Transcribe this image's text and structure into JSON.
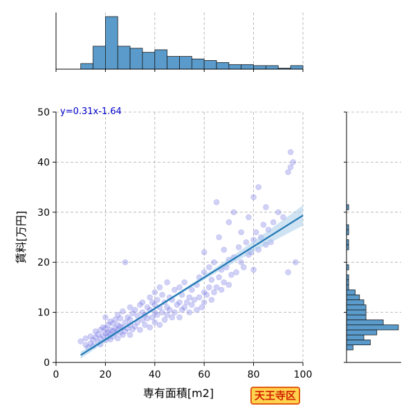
{
  "chart_data": {
    "type": "scatter",
    "xlabel": "専有面積[m2]",
    "ylabel": "賃料[万円]",
    "xlim": [
      0,
      100
    ],
    "ylim": [
      0,
      50
    ],
    "x_ticks": [
      "0",
      "20",
      "40",
      "60",
      "80",
      "100"
    ],
    "y_ticks": [
      "0",
      "10",
      "20",
      "30",
      "40",
      "50"
    ],
    "grid": true,
    "annotation": "y=0.31x-1.64",
    "area_label": "天王寺区",
    "regression": {
      "slope": 0.31,
      "intercept": -1.64,
      "x_range": [
        10,
        100
      ]
    },
    "top_histogram": {
      "bin_edges": [
        10,
        15,
        20,
        25,
        30,
        35,
        40,
        45,
        50,
        55,
        60,
        65,
        70,
        75,
        80,
        85,
        90,
        95,
        100
      ],
      "counts": [
        11,
        45,
        103,
        45,
        41,
        33,
        38,
        25,
        25,
        20,
        17,
        13,
        9,
        9,
        7,
        7,
        2,
        7
      ]
    },
    "right_histogram": {
      "bin_edges": [
        2.5,
        3.5,
        4.5,
        5.5,
        6.5,
        7.5,
        8.5,
        9.5,
        10.5,
        11.5,
        12.5,
        13.5,
        14.5,
        15.5,
        16.5,
        17.5,
        18.5,
        19.5,
        20.5,
        21.5,
        22.5,
        23.5,
        24.5,
        25.5,
        26.5,
        27.5,
        28.5,
        29.5,
        30.5,
        31.5,
        32.5,
        33.5,
        34.5,
        35.5,
        36.5,
        37.5,
        38.5,
        39.5,
        40.5,
        41.5,
        42.5
      ],
      "counts": [
        3,
        11,
        8,
        14,
        24,
        17,
        9,
        9,
        9,
        8,
        6,
        4,
        1,
        1,
        1,
        0,
        1,
        0,
        0,
        0,
        1,
        1,
        0,
        1,
        1,
        0,
        0,
        0,
        1,
        0,
        0,
        0,
        0,
        0,
        0,
        0,
        0,
        0,
        0,
        0
      ]
    },
    "points": [
      [
        10,
        4.2
      ],
      [
        12,
        3.5
      ],
      [
        12,
        4.8
      ],
      [
        13,
        3.0
      ],
      [
        14,
        3.8
      ],
      [
        14,
        5.2
      ],
      [
        15,
        4.5
      ],
      [
        15,
        3.3
      ],
      [
        16,
        5.0
      ],
      [
        16,
        6.2
      ],
      [
        17,
        4.0
      ],
      [
        17,
        5.6
      ],
      [
        18,
        3.6
      ],
      [
        18,
        4.8
      ],
      [
        18,
        6.5
      ],
      [
        19,
        5.3
      ],
      [
        19,
        7.0
      ],
      [
        20,
        4.4
      ],
      [
        20,
        5.8
      ],
      [
        20,
        6.8
      ],
      [
        20,
        9.0
      ],
      [
        21,
        5.0
      ],
      [
        21,
        6.0
      ],
      [
        21,
        7.5
      ],
      [
        22,
        4.6
      ],
      [
        22,
        5.5
      ],
      [
        22,
        6.5
      ],
      [
        22,
        8.2
      ],
      [
        23,
        5.2
      ],
      [
        23,
        6.3
      ],
      [
        23,
        7.8
      ],
      [
        24,
        5.8
      ],
      [
        24,
        6.8
      ],
      [
        24,
        8.6
      ],
      [
        25,
        4.8
      ],
      [
        25,
        6.5
      ],
      [
        25,
        7.5
      ],
      [
        25,
        9.5
      ],
      [
        26,
        6.0
      ],
      [
        26,
        7.2
      ],
      [
        26,
        8.8
      ],
      [
        27,
        5.5
      ],
      [
        27,
        7.0
      ],
      [
        27,
        10.2
      ],
      [
        28,
        6.2
      ],
      [
        28,
        8.0
      ],
      [
        28,
        20.0
      ],
      [
        29,
        6.8
      ],
      [
        29,
        9.0
      ],
      [
        30,
        5.5
      ],
      [
        30,
        7.5
      ],
      [
        30,
        8.6
      ],
      [
        30,
        11.0
      ],
      [
        31,
        6.6
      ],
      [
        31,
        9.8
      ],
      [
        32,
        7.2
      ],
      [
        32,
        10.5
      ],
      [
        33,
        8.0
      ],
      [
        33,
        9.3
      ],
      [
        34,
        6.5
      ],
      [
        34,
        11.5
      ],
      [
        35,
        8.5
      ],
      [
        35,
        10.0
      ],
      [
        35,
        12.0
      ],
      [
        36,
        7.5
      ],
      [
        36,
        9.5
      ],
      [
        37,
        8.8
      ],
      [
        37,
        11.0
      ],
      [
        38,
        7.0
      ],
      [
        38,
        10.5
      ],
      [
        38,
        13.0
      ],
      [
        39,
        9.0
      ],
      [
        39,
        12.0
      ],
      [
        40,
        8.0
      ],
      [
        40,
        10.0
      ],
      [
        40,
        11.5
      ],
      [
        40,
        14.0
      ],
      [
        41,
        9.5
      ],
      [
        41,
        12.5
      ],
      [
        42,
        7.5
      ],
      [
        42,
        11.0
      ],
      [
        42,
        15.0
      ],
      [
        43,
        10.0
      ],
      [
        43,
        13.5
      ],
      [
        44,
        8.5
      ],
      [
        44,
        12.0
      ],
      [
        45,
        9.5
      ],
      [
        45,
        11.0
      ],
      [
        45,
        16.0
      ],
      [
        46,
        10.5
      ],
      [
        46,
        13.0
      ],
      [
        47,
        9.0
      ],
      [
        47,
        12.5
      ],
      [
        48,
        10.0
      ],
      [
        48,
        14.5
      ],
      [
        49,
        11.5
      ],
      [
        50,
        9.0
      ],
      [
        50,
        12.0
      ],
      [
        50,
        15.0
      ],
      [
        51,
        10.5
      ],
      [
        51,
        13.5
      ],
      [
        52,
        11.0
      ],
      [
        52,
        16.0
      ],
      [
        53,
        12.0
      ],
      [
        54,
        10.0
      ],
      [
        54,
        13.0
      ],
      [
        55,
        11.5
      ],
      [
        55,
        14.5
      ],
      [
        56,
        12.5
      ],
      [
        57,
        10.5
      ],
      [
        57,
        15.5
      ],
      [
        58,
        13.0
      ],
      [
        58,
        17.0
      ],
      [
        59,
        11.0
      ],
      [
        60,
        12.0
      ],
      [
        60,
        14.0
      ],
      [
        60,
        18.0
      ],
      [
        60,
        22.0
      ],
      [
        61,
        13.5
      ],
      [
        62,
        15.0
      ],
      [
        62,
        19.0
      ],
      [
        63,
        12.5
      ],
      [
        63,
        16.5
      ],
      [
        64,
        14.0
      ],
      [
        64,
        20.0
      ],
      [
        65,
        15.0
      ],
      [
        65,
        32.0
      ],
      [
        66,
        17.0
      ],
      [
        66,
        25.0
      ],
      [
        67,
        14.5
      ],
      [
        67,
        18.5
      ],
      [
        68,
        16.0
      ],
      [
        68,
        22.5
      ],
      [
        69,
        19.0
      ],
      [
        70,
        15.5
      ],
      [
        70,
        20.5
      ],
      [
        70,
        28.0
      ],
      [
        71,
        17.5
      ],
      [
        72,
        21.0
      ],
      [
        72,
        30.0
      ],
      [
        73,
        18.0
      ],
      [
        74,
        23.0
      ],
      [
        75,
        20.0
      ],
      [
        75,
        26.0
      ],
      [
        76,
        19.0
      ],
      [
        77,
        24.0
      ],
      [
        78,
        21.5
      ],
      [
        78,
        29.0
      ],
      [
        79,
        22.0
      ],
      [
        80,
        18.5
      ],
      [
        80,
        24.5
      ],
      [
        80,
        33.0
      ],
      [
        81,
        26.0
      ],
      [
        82,
        22.5
      ],
      [
        82,
        35.0
      ],
      [
        83,
        25.0
      ],
      [
        84,
        27.5
      ],
      [
        85,
        23.5
      ],
      [
        85,
        31.0
      ],
      [
        86,
        26.5
      ],
      [
        87,
        24.0
      ],
      [
        88,
        28.0
      ],
      [
        90,
        30.0
      ],
      [
        92,
        29.0
      ],
      [
        94,
        18.0
      ],
      [
        94,
        38.0
      ],
      [
        95,
        42.0
      ],
      [
        96,
        40.0
      ],
      [
        97,
        20.0
      ],
      [
        95,
        39.0
      ]
    ]
  }
}
